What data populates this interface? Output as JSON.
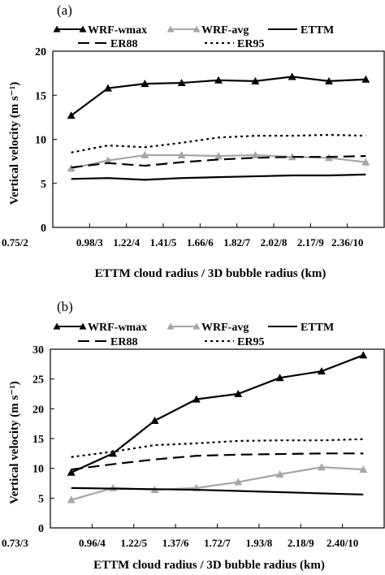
{
  "chart_data": [
    {
      "type": "line",
      "panel_label": "(a)",
      "xlabel": "ETTM cloud radius / 3D bubble radius (km)",
      "ylabel": "Vertical velocity (m s⁻¹)",
      "ylim": [
        0,
        20
      ],
      "yticks": [
        0,
        5,
        10,
        15,
        20
      ],
      "categories": [
        "0.75/2",
        "0.98/3",
        "1.22/4",
        "1.41/5",
        "1.66/6",
        "1.82/7",
        "2.02/8",
        "2.17/9",
        "2.36/10"
      ],
      "grid": false,
      "legend_position": "top",
      "series": [
        {
          "name": "WRF-wmax",
          "style": "solid-triangle-black",
          "color": "#000000",
          "values": [
            12.7,
            15.8,
            16.3,
            16.4,
            16.7,
            16.6,
            17.1,
            16.6,
            16.8
          ]
        },
        {
          "name": "WRF-avg",
          "style": "solid-triangle-gray",
          "color": "#a6a6a6",
          "values": [
            6.7,
            7.6,
            8.2,
            8.2,
            8.1,
            8.2,
            8.0,
            7.9,
            7.4
          ]
        },
        {
          "name": "ETTM",
          "style": "solid",
          "color": "#000000",
          "values": [
            5.5,
            5.6,
            5.4,
            5.6,
            5.7,
            5.8,
            5.9,
            5.9,
            6.0
          ]
        },
        {
          "name": "ER88",
          "style": "dash",
          "color": "#000000",
          "values": [
            6.8,
            7.3,
            7.0,
            7.4,
            7.7,
            7.9,
            8.0,
            8.0,
            8.1
          ]
        },
        {
          "name": "ER95",
          "style": "dot",
          "color": "#000000",
          "values": [
            8.5,
            9.3,
            9.1,
            9.6,
            10.2,
            10.4,
            10.4,
            10.5,
            10.4
          ]
        }
      ]
    },
    {
      "type": "line",
      "panel_label": "(b)",
      "xlabel": "ETTM cloud radius / 3D bubble radius (km)",
      "ylabel": "Vertical velocity (m s⁻¹)",
      "ylim": [
        0,
        30
      ],
      "yticks": [
        0,
        5,
        10,
        15,
        20,
        25,
        30
      ],
      "categories": [
        "0.73/3",
        "0.96/4",
        "1.22/5",
        "1.37/6",
        "1.72/7",
        "1.93/8",
        "2.18/9",
        "2.40/10"
      ],
      "grid": false,
      "legend_position": "top",
      "series": [
        {
          "name": "WRF-wmax",
          "style": "solid-triangle-black",
          "color": "#000000",
          "values": [
            9.3,
            12.5,
            18.0,
            21.6,
            22.5,
            25.2,
            26.3,
            29.0
          ]
        },
        {
          "name": "WRF-avg",
          "style": "solid-triangle-gray",
          "color": "#a6a6a6",
          "values": [
            4.7,
            6.7,
            6.4,
            6.7,
            7.7,
            9.0,
            10.2,
            9.8
          ]
        },
        {
          "name": "ETTM",
          "style": "solid",
          "color": "#000000",
          "values": [
            6.7,
            6.6,
            6.5,
            6.4,
            6.2,
            6.0,
            5.8,
            5.6
          ]
        },
        {
          "name": "ER88",
          "style": "dash",
          "color": "#000000",
          "values": [
            9.8,
            10.7,
            11.5,
            12.1,
            12.3,
            12.4,
            12.5,
            12.5
          ]
        },
        {
          "name": "ER95",
          "style": "dot",
          "color": "#000000",
          "values": [
            11.9,
            12.8,
            13.9,
            14.2,
            14.6,
            14.7,
            14.7,
            14.9
          ]
        }
      ]
    }
  ]
}
